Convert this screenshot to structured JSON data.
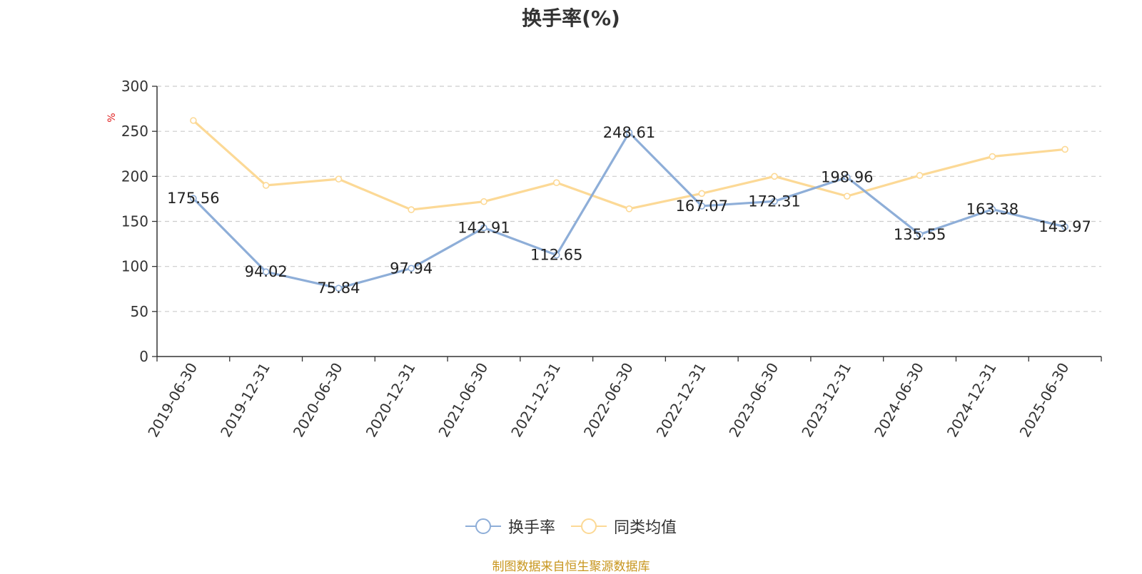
{
  "chart_data": {
    "type": "line",
    "title": "换手率(%)",
    "ylabel": "%",
    "ylim": [
      0,
      300
    ],
    "yticks": [
      0,
      50,
      100,
      150,
      200,
      250,
      300
    ],
    "grid": true,
    "legend_position": "bottom-center",
    "categories": [
      "2019-06-30",
      "2019-12-31",
      "2020-06-30",
      "2020-12-31",
      "2021-06-30",
      "2021-12-31",
      "2022-06-30",
      "2022-12-31",
      "2023-06-30",
      "2023-12-31",
      "2024-06-30",
      "2024-12-31",
      "2025-06-30"
    ],
    "series": [
      {
        "name": "换手率",
        "color": "#8eaed8",
        "show_labels": true,
        "values": [
          175.56,
          94.02,
          75.84,
          97.94,
          142.91,
          112.65,
          248.61,
          167.07,
          172.31,
          198.96,
          135.55,
          163.38,
          143.97
        ]
      },
      {
        "name": "同类均值",
        "color": "#fcd996",
        "show_labels": false,
        "values": [
          262,
          190,
          197,
          163,
          172,
          193,
          164,
          181,
          200,
          178,
          201,
          222,
          230
        ]
      }
    ]
  },
  "source_note": "制图数据来自恒生聚源数据库"
}
